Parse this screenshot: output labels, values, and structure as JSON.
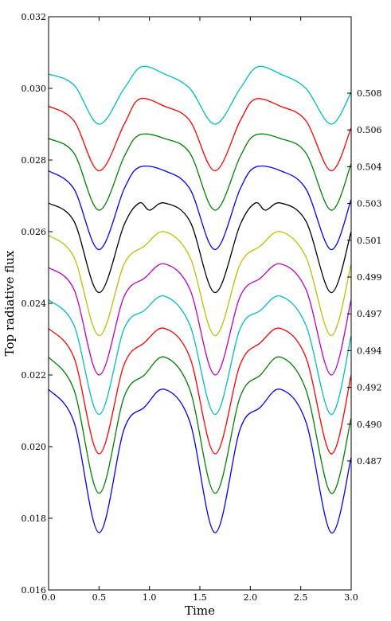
{
  "chart_data": {
    "type": "line",
    "xlabel": "Time",
    "ylabel": "Top radiative flux",
    "xlim": [
      0.0,
      3.0
    ],
    "ylim": [
      0.016,
      0.032
    ],
    "grid": false,
    "x_ticks": [
      "0.0",
      "0.5",
      "1.0",
      "1.5",
      "2.0",
      "2.5",
      "3.0"
    ],
    "y_ticks": [
      "0.016",
      "0.018",
      "0.020",
      "0.022",
      "0.024",
      "0.026",
      "0.028",
      "0.030",
      "0.032"
    ],
    "right_labels": [
      "0.508",
      "0.506",
      "0.504",
      "0.503",
      "0.501",
      "0.499",
      "0.497",
      "0.494",
      "0.492",
      "0.490",
      "0.487"
    ],
    "series": [
      {
        "color": "#00bfbf",
        "x": [
          0.0,
          0.25,
          0.5,
          0.75,
          0.92,
          1.15,
          1.4,
          1.65,
          1.9,
          2.07,
          2.3,
          2.55,
          2.8,
          3.0
        ],
        "values": [
          0.0304,
          0.0301,
          0.029,
          0.03,
          0.0306,
          0.0304,
          0.03,
          0.029,
          0.03,
          0.0306,
          0.0304,
          0.03,
          0.029,
          0.0299
        ]
      },
      {
        "color": "#ff0000",
        "x": [
          0.0,
          0.25,
          0.5,
          0.75,
          0.9,
          1.15,
          1.4,
          1.65,
          1.9,
          2.05,
          2.3,
          2.55,
          2.8,
          3.0
        ],
        "values": [
          0.0295,
          0.0291,
          0.0277,
          0.029,
          0.0297,
          0.0295,
          0.0291,
          0.0277,
          0.0291,
          0.0297,
          0.0295,
          0.0291,
          0.0277,
          0.0289
        ]
      },
      {
        "color": "#008000",
        "x": [
          0.0,
          0.25,
          0.5,
          0.75,
          0.9,
          1.15,
          1.4,
          1.65,
          1.9,
          2.05,
          2.3,
          2.55,
          2.8,
          3.0
        ],
        "values": [
          0.0286,
          0.0282,
          0.0266,
          0.0281,
          0.0287,
          0.0286,
          0.0282,
          0.0266,
          0.0281,
          0.0287,
          0.0286,
          0.0282,
          0.0266,
          0.0279
        ]
      },
      {
        "color": "#0000ff",
        "x": [
          0.0,
          0.25,
          0.5,
          0.75,
          0.9,
          1.15,
          1.4,
          1.65,
          1.9,
          2.05,
          2.3,
          2.55,
          2.8,
          3.0
        ],
        "values": [
          0.0277,
          0.0272,
          0.0255,
          0.0272,
          0.0278,
          0.0277,
          0.0272,
          0.0255,
          0.0272,
          0.0278,
          0.0277,
          0.0272,
          0.0255,
          0.0269
        ]
      },
      {
        "color": "#000000",
        "x": [
          0.0,
          0.25,
          0.5,
          0.75,
          0.9,
          1.0,
          1.15,
          1.4,
          1.65,
          1.9,
          2.05,
          2.15,
          2.3,
          2.55,
          2.8,
          3.0
        ],
        "values": [
          0.0268,
          0.0263,
          0.0243,
          0.0262,
          0.0268,
          0.0266,
          0.0268,
          0.0263,
          0.0243,
          0.0262,
          0.0268,
          0.0266,
          0.0268,
          0.0263,
          0.0243,
          0.026
        ]
      },
      {
        "color": "#bfbf00",
        "x": [
          0.0,
          0.25,
          0.5,
          0.75,
          0.95,
          1.15,
          1.4,
          1.65,
          1.9,
          2.1,
          2.3,
          2.55,
          2.8,
          3.0
        ],
        "values": [
          0.0259,
          0.0253,
          0.0231,
          0.0251,
          0.0256,
          0.026,
          0.0253,
          0.0231,
          0.0251,
          0.0256,
          0.026,
          0.0253,
          0.0231,
          0.0251
        ]
      },
      {
        "color": "#bf00bf",
        "x": [
          0.0,
          0.25,
          0.5,
          0.75,
          0.95,
          1.15,
          1.4,
          1.65,
          1.9,
          2.1,
          2.3,
          2.55,
          2.8,
          3.0
        ],
        "values": [
          0.025,
          0.0244,
          0.022,
          0.0242,
          0.0247,
          0.0251,
          0.0244,
          0.022,
          0.0242,
          0.0247,
          0.0251,
          0.0244,
          0.022,
          0.0241
        ]
      },
      {
        "color": "#00bfbf",
        "x": [
          0.0,
          0.25,
          0.5,
          0.75,
          0.95,
          1.15,
          1.4,
          1.65,
          1.9,
          2.1,
          2.3,
          2.55,
          2.8,
          3.0
        ],
        "values": [
          0.0241,
          0.0234,
          0.0209,
          0.0233,
          0.0238,
          0.0242,
          0.0234,
          0.0209,
          0.0233,
          0.0238,
          0.0242,
          0.0234,
          0.0209,
          0.0231
        ]
      },
      {
        "color": "#ff0000",
        "x": [
          0.0,
          0.25,
          0.5,
          0.75,
          0.95,
          1.15,
          1.4,
          1.65,
          1.9,
          2.1,
          2.3,
          2.55,
          2.8,
          3.0
        ],
        "values": [
          0.0233,
          0.0225,
          0.0198,
          0.0223,
          0.0229,
          0.0233,
          0.0225,
          0.0198,
          0.0223,
          0.0229,
          0.0233,
          0.0225,
          0.0198,
          0.022
        ]
      },
      {
        "color": "#008000",
        "x": [
          0.0,
          0.25,
          0.5,
          0.75,
          0.95,
          1.15,
          1.4,
          1.65,
          1.9,
          2.1,
          2.3,
          2.55,
          2.8,
          3.0
        ],
        "values": [
          0.0225,
          0.0216,
          0.0187,
          0.0214,
          0.022,
          0.0225,
          0.0216,
          0.0187,
          0.0214,
          0.022,
          0.0225,
          0.0216,
          0.0187,
          0.0208
        ]
      },
      {
        "color": "#0000ff",
        "x": [
          0.0,
          0.25,
          0.5,
          0.75,
          0.95,
          1.15,
          1.4,
          1.65,
          1.9,
          2.1,
          2.3,
          2.55,
          2.8,
          3.0
        ],
        "values": [
          0.0216,
          0.0207,
          0.0176,
          0.0205,
          0.0211,
          0.0216,
          0.0207,
          0.0176,
          0.0205,
          0.0211,
          0.0216,
          0.0207,
          0.0176,
          0.0197
        ]
      }
    ]
  }
}
